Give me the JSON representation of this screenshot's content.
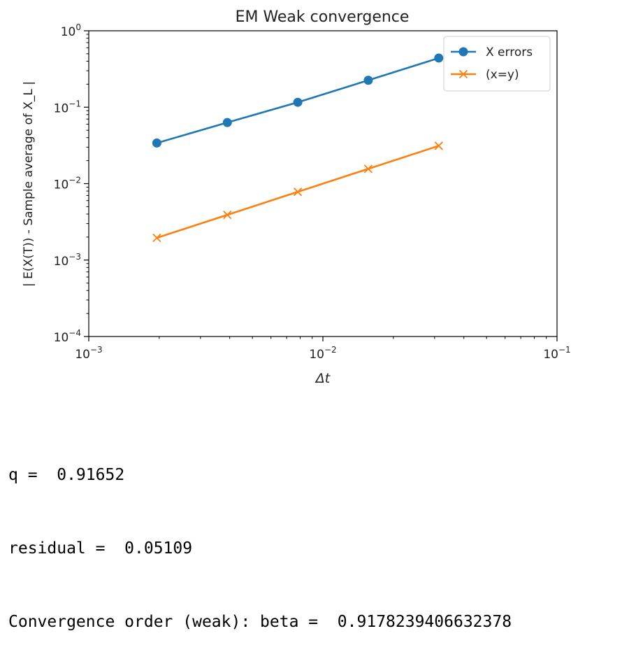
{
  "chart_data": {
    "type": "line",
    "title": "EM Weak convergence",
    "xlabel": "Δt",
    "ylabel": "| E(X(T)) - Sample average of X_L |",
    "xscale": "log",
    "yscale": "log",
    "xlim": [
      0.001,
      0.1
    ],
    "ylim": [
      0.0001,
      1
    ],
    "x_ticks": [
      {
        "value": 0.001,
        "base": "10",
        "exp": "−3"
      },
      {
        "value": 0.01,
        "base": "10",
        "exp": "−2"
      },
      {
        "value": 0.1,
        "base": "10",
        "exp": "−1"
      }
    ],
    "y_ticks": [
      {
        "value": 1,
        "base": "10",
        "exp": "0"
      },
      {
        "value": 0.1,
        "base": "10",
        "exp": "−1"
      },
      {
        "value": 0.01,
        "base": "10",
        "exp": "−2"
      },
      {
        "value": 0.001,
        "base": "10",
        "exp": "−3"
      },
      {
        "value": 0.0001,
        "base": "10",
        "exp": "−4"
      }
    ],
    "grid": false,
    "legend": "top-right",
    "series": [
      {
        "name": "X errors",
        "color": "#1f77b4",
        "marker": "circle",
        "x": [
          0.001953125,
          0.00390625,
          0.0078125,
          0.015625,
          0.03125
        ],
        "y": [
          0.034,
          0.063,
          0.116,
          0.225,
          0.44
        ]
      },
      {
        "name": "(x=y)",
        "color": "#ff7f0e",
        "marker": "x",
        "x": [
          0.001953125,
          0.00390625,
          0.0078125,
          0.015625,
          0.03125
        ],
        "y": [
          0.001953125,
          0.00390625,
          0.0078125,
          0.015625,
          0.03125
        ]
      }
    ]
  },
  "output": {
    "lines": [
      "q =  0.91652",
      "residual =  0.05109",
      "Convergence order (weak): beta =  0.9178239406632378"
    ]
  }
}
